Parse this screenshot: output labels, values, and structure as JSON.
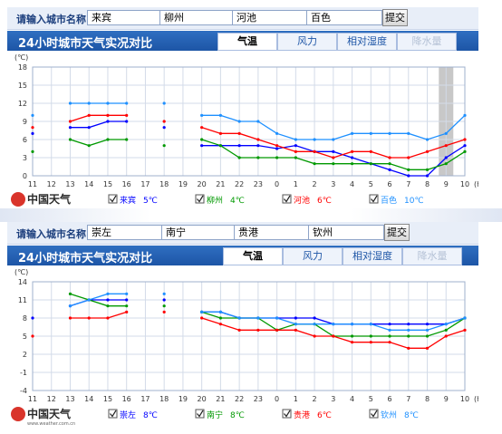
{
  "panels": [
    {
      "input_label": "请输入城市名称",
      "cities": [
        "来宾",
        "柳州",
        "河池",
        "百色"
      ],
      "compare_button": "提交",
      "title": "24小时城市天气实况对比",
      "tabs": [
        {
          "label": "气温",
          "state": "active"
        },
        {
          "label": "风力",
          "state": "normal"
        },
        {
          "label": "相对湿度",
          "state": "normal"
        },
        {
          "label": "降水量",
          "state": "disabled"
        }
      ],
      "logo_text": "中国天气",
      "legend": [
        {
          "name": "来宾",
          "value": "5℃",
          "color": "#0000ff"
        },
        {
          "name": "柳州",
          "value": "4℃",
          "color": "#009900"
        },
        {
          "name": "河池",
          "value": "6℃",
          "color": "#ff0000"
        },
        {
          "name": "百色",
          "value": "10℃",
          "color": "#1e90ff"
        }
      ]
    },
    {
      "input_label": "请输入城市名称",
      "cities": [
        "崇左",
        "南宁",
        "贵港",
        "钦州"
      ],
      "compare_button": "提交",
      "title": "24小时城市天气实况对比",
      "tabs": [
        {
          "label": "气温",
          "state": "active"
        },
        {
          "label": "风力",
          "state": "normal"
        },
        {
          "label": "相对湿度",
          "state": "normal"
        },
        {
          "label": "降水量",
          "state": "disabled"
        }
      ],
      "logo_text": "中国天气",
      "logo_url": "www.weather.com.cn",
      "legend": [
        {
          "name": "崇左",
          "value": "8℃",
          "color": "#0000ff"
        },
        {
          "name": "南宁",
          "value": "8℃",
          "color": "#009900"
        },
        {
          "name": "贵港",
          "value": "6℃",
          "color": "#ff0000"
        },
        {
          "name": "钦州",
          "value": "8℃",
          "color": "#1e90ff"
        }
      ]
    }
  ],
  "chart_data": [
    {
      "type": "line",
      "ylabel": "(℃)",
      "xlabel": "(h)",
      "categories": [
        "11",
        "12",
        "13",
        "14",
        "15",
        "16",
        "17",
        "18",
        "19",
        "20",
        "21",
        "22",
        "23",
        "0",
        "1",
        "2",
        "3",
        "4",
        "5",
        "6",
        "7",
        "8",
        "9",
        "10"
      ],
      "yticks": [
        0,
        3,
        6,
        9,
        12,
        15,
        18
      ],
      "ylim": [
        0,
        18
      ],
      "grid": true,
      "highlight_category": "9",
      "series": [
        {
          "name": "来宾",
          "color": "#0000ff",
          "values": [
            7,
            null,
            8,
            8,
            9,
            9,
            null,
            8,
            null,
            5,
            5,
            5,
            5,
            4.5,
            5,
            4,
            4,
            3,
            2,
            1,
            0,
            0,
            3,
            5
          ]
        },
        {
          "name": "柳州",
          "color": "#009900",
          "values": [
            4,
            null,
            6,
            5,
            6,
            6,
            null,
            5,
            null,
            6,
            5,
            3,
            3,
            3,
            3,
            2,
            2,
            2,
            2,
            2,
            1,
            1,
            2,
            4
          ]
        },
        {
          "name": "河池",
          "color": "#ff0000",
          "values": [
            8,
            null,
            9,
            10,
            10,
            10,
            null,
            9,
            null,
            8,
            7,
            7,
            6,
            5,
            4,
            4,
            3,
            4,
            4,
            3,
            3,
            4,
            5,
            6
          ]
        },
        {
          "name": "百色",
          "color": "#1e90ff",
          "values": [
            10,
            null,
            12,
            12,
            12,
            12,
            null,
            12,
            null,
            10,
            10,
            9,
            9,
            7,
            6,
            6,
            6,
            7,
            7,
            7,
            7,
            6,
            7,
            10
          ]
        }
      ]
    },
    {
      "type": "line",
      "ylabel": "(℃)",
      "xlabel": "(h)",
      "categories": [
        "11",
        "12",
        "13",
        "14",
        "15",
        "16",
        "17",
        "18",
        "19",
        "20",
        "21",
        "22",
        "23",
        "0",
        "1",
        "2",
        "3",
        "4",
        "5",
        "6",
        "7",
        "8",
        "9",
        "10"
      ],
      "yticks": [
        -4,
        -1,
        2,
        5,
        8,
        11,
        14
      ],
      "ylim": [
        -4,
        14
      ],
      "grid": true,
      "series": [
        {
          "name": "崇左",
          "color": "#0000ff",
          "values": [
            8,
            null,
            10,
            11,
            11,
            11,
            null,
            11,
            null,
            9,
            9,
            8,
            8,
            8,
            8,
            8,
            7,
            7,
            7,
            7,
            7,
            7,
            7,
            8
          ]
        },
        {
          "name": "南宁",
          "color": "#009900",
          "values": [
            null,
            null,
            12,
            11,
            10,
            10,
            null,
            10,
            null,
            9,
            8,
            8,
            8,
            6,
            7,
            7,
            5,
            5,
            5,
            5,
            5,
            5,
            6,
            8
          ]
        },
        {
          "name": "贵港",
          "color": "#ff0000",
          "values": [
            5,
            null,
            8,
            8,
            8,
            9,
            null,
            9,
            null,
            8,
            7,
            6,
            6,
            6,
            6,
            5,
            5,
            4,
            4,
            4,
            3,
            3,
            5,
            6
          ]
        },
        {
          "name": "钦州",
          "color": "#1e90ff",
          "values": [
            null,
            null,
            10,
            11,
            12,
            12,
            null,
            12,
            null,
            9,
            9,
            8,
            8,
            8,
            7,
            7,
            7,
            7,
            7,
            6,
            6,
            6,
            7,
            8
          ]
        }
      ]
    }
  ]
}
